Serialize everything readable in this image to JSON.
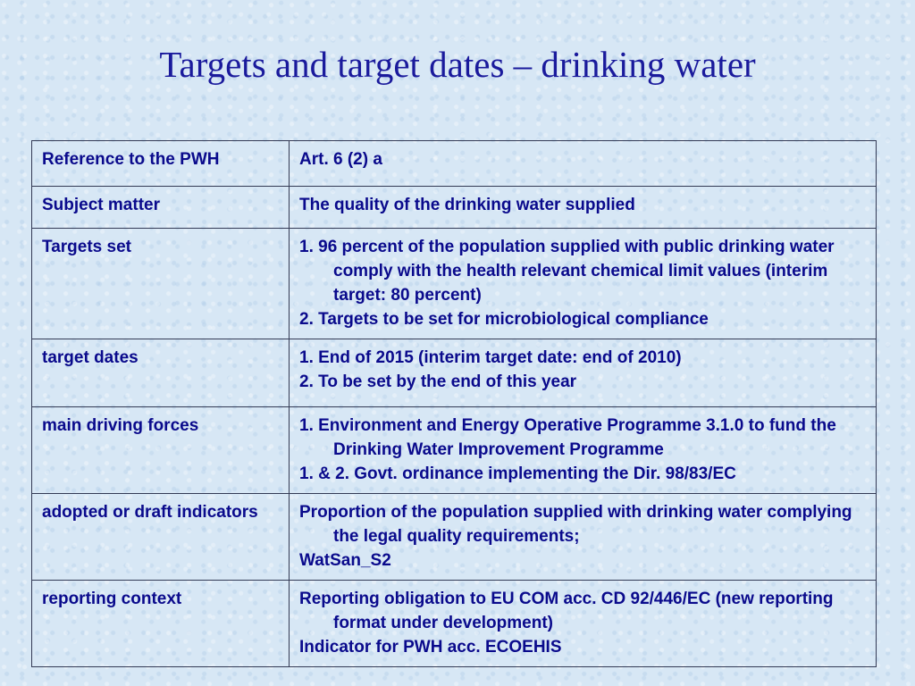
{
  "title": "Targets and target dates – drinking water",
  "table": {
    "rows": [
      {
        "label": "Reference to the PWH",
        "lines": [
          "Art. 6 (2) a"
        ]
      },
      {
        "label": "Subject matter",
        "lines": [
          "The quality of the drinking water supplied"
        ]
      },
      {
        "label": "Targets set",
        "lines": [
          "1. 96 percent of the population supplied with public drinking water comply with the health relevant chemical limit values (interim target: 80 percent)",
          "2. Targets to be set for microbiological compliance"
        ]
      },
      {
        "label": "target dates",
        "lines": [
          "1. End of 2015 (interim target date: end of 2010)",
          "2. To be set by the end of this year"
        ]
      },
      {
        "label": "main driving forces",
        "lines": [
          "1. Environment and Energy Operative Programme 3.1.0 to fund the Drinking Water Improvement Programme",
          "1. & 2. Govt. ordinance implementing the Dir. 98/83/EC"
        ]
      },
      {
        "label": "adopted or draft indicators",
        "lines": [
          "Proportion of the population supplied with drinking water complying the legal quality requirements;",
          "WatSan_S2"
        ]
      },
      {
        "label": "reporting context",
        "lines": [
          "Reporting obligation to EU COM acc. CD 92/446/EC (new reporting format under development)",
          "Indicator for PWH acc. ECOEHIS"
        ]
      }
    ]
  }
}
